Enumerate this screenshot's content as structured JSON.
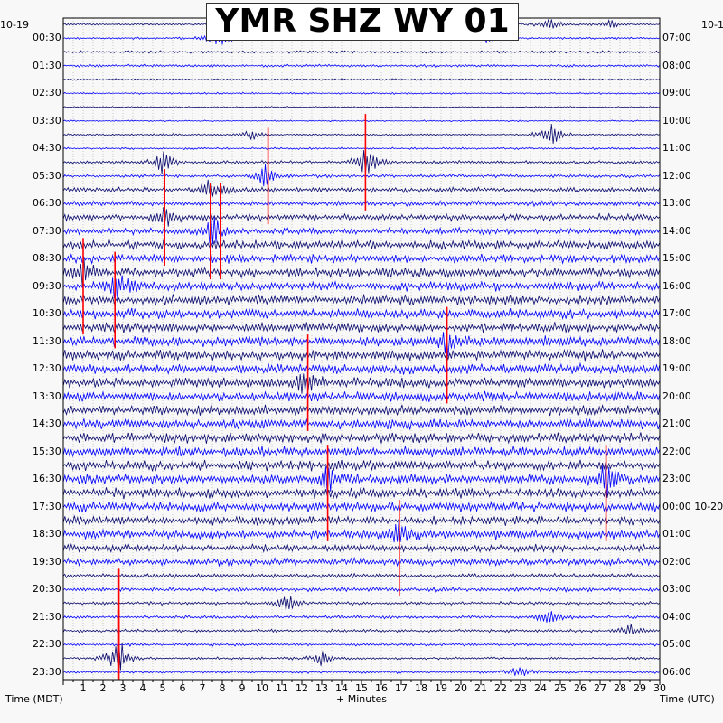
{
  "chart_data": {
    "type": "helicorder",
    "title": "YMR SHZ WY 01",
    "left_date": "10-19",
    "right_date": "10-1",
    "xlabel": "+ Minutes",
    "left_axis_label": "Time (MDT)",
    "right_axis_label": "Time (UTC)",
    "x_ticks": [
      1,
      2,
      3,
      4,
      5,
      6,
      7,
      8,
      9,
      10,
      11,
      12,
      13,
      14,
      15,
      16,
      17,
      18,
      19,
      20,
      21,
      22,
      23,
      24,
      25,
      26,
      27,
      28,
      29,
      30
    ],
    "xlim": [
      0,
      30
    ],
    "left_times": [
      "00:30",
      "01:30",
      "02:30",
      "03:30",
      "04:30",
      "05:30",
      "06:30",
      "07:30",
      "08:30",
      "09:30",
      "10:30",
      "11:30",
      "12:30",
      "13:30",
      "14:30",
      "15:30",
      "16:30",
      "17:30",
      "18:30",
      "19:30",
      "20:30",
      "21:30",
      "22:30",
      "23:30"
    ],
    "right_times": [
      "07:00",
      "08:00",
      "09:00",
      "10:00",
      "11:00",
      "12:00",
      "13:00",
      "14:00",
      "15:00",
      "16:00",
      "17:00",
      "18:00",
      "19:00",
      "20:00",
      "21:00",
      "22:00",
      "23:00",
      "00:00 10-20",
      "01:00",
      "02:00",
      "03:00",
      "04:00",
      "05:00",
      "06:00"
    ],
    "trace_count": 48,
    "trace_colors": [
      "#0a0a6e",
      "#0000ff"
    ],
    "clip_color": "#ff0000",
    "grid": true,
    "noise_level_by_hour": [
      0.3,
      0.35,
      0.25,
      0.2,
      0.3,
      0.45,
      0.7,
      0.9,
      1.2,
      1.3,
      1.4,
      1.4,
      1.4,
      1.4,
      1.4,
      1.4,
      1.4,
      1.4,
      1.3,
      1.0,
      0.6,
      0.45,
      0.4,
      0.35
    ],
    "events": [
      {
        "row": 1,
        "minute": 7.8,
        "amp": 3.2
      },
      {
        "row": 0,
        "minute": 24.5,
        "amp": 1.2
      },
      {
        "row": 0,
        "minute": 27.5,
        "amp": 1.0
      },
      {
        "row": 1,
        "minute": 21.3,
        "amp": 0.9
      },
      {
        "row": 8,
        "minute": 24.5,
        "amp": 3.5
      },
      {
        "row": 8,
        "minute": 9.5,
        "amp": 1.2
      },
      {
        "row": 10,
        "minute": 15.3,
        "amp": 4.0
      },
      {
        "row": 10,
        "minute": 5.0,
        "amp": 2.5
      },
      {
        "row": 11,
        "minute": 10.2,
        "amp": 3.0
      },
      {
        "row": 12,
        "minute": 7.5,
        "amp": 3.5
      },
      {
        "row": 14,
        "minute": 5.2,
        "amp": 3.0
      },
      {
        "row": 15,
        "minute": 7.5,
        "amp": 4.0
      },
      {
        "row": 18,
        "minute": 1.0,
        "amp": 3.0
      },
      {
        "row": 19,
        "minute": 2.7,
        "amp": 4.0
      },
      {
        "row": 23,
        "minute": 19.3,
        "amp": 3.0
      },
      {
        "row": 26,
        "minute": 12.2,
        "amp": 3.0
      },
      {
        "row": 33,
        "minute": 13.3,
        "amp": 4.0
      },
      {
        "row": 33,
        "minute": 27.3,
        "amp": 4.0
      },
      {
        "row": 37,
        "minute": 16.9,
        "amp": 3.0
      },
      {
        "row": 42,
        "minute": 11.3,
        "amp": 2.0
      },
      {
        "row": 43,
        "minute": 24.5,
        "amp": 2.0
      },
      {
        "row": 44,
        "minute": 28.5,
        "amp": 1.5
      },
      {
        "row": 46,
        "minute": 2.8,
        "amp": 5.0
      },
      {
        "row": 46,
        "minute": 13.0,
        "amp": 1.5
      },
      {
        "row": 47,
        "minute": 23.0,
        "amp": 1.8
      }
    ],
    "clipped": [
      {
        "row": 10,
        "minute": 15.2
      },
      {
        "row": 11,
        "minute": 10.3
      },
      {
        "row": 14,
        "minute": 5.1
      },
      {
        "row": 15,
        "minute": 7.4
      },
      {
        "row": 15,
        "minute": 7.9
      },
      {
        "row": 19,
        "minute": 1.0
      },
      {
        "row": 20,
        "minute": 2.6
      },
      {
        "row": 24,
        "minute": 19.3
      },
      {
        "row": 26,
        "minute": 12.3
      },
      {
        "row": 34,
        "minute": 13.3
      },
      {
        "row": 34,
        "minute": 27.3
      },
      {
        "row": 38,
        "minute": 16.9
      },
      {
        "row": 43,
        "minute": 2.8
      },
      {
        "row": 46,
        "minute": 2.8
      }
    ]
  }
}
